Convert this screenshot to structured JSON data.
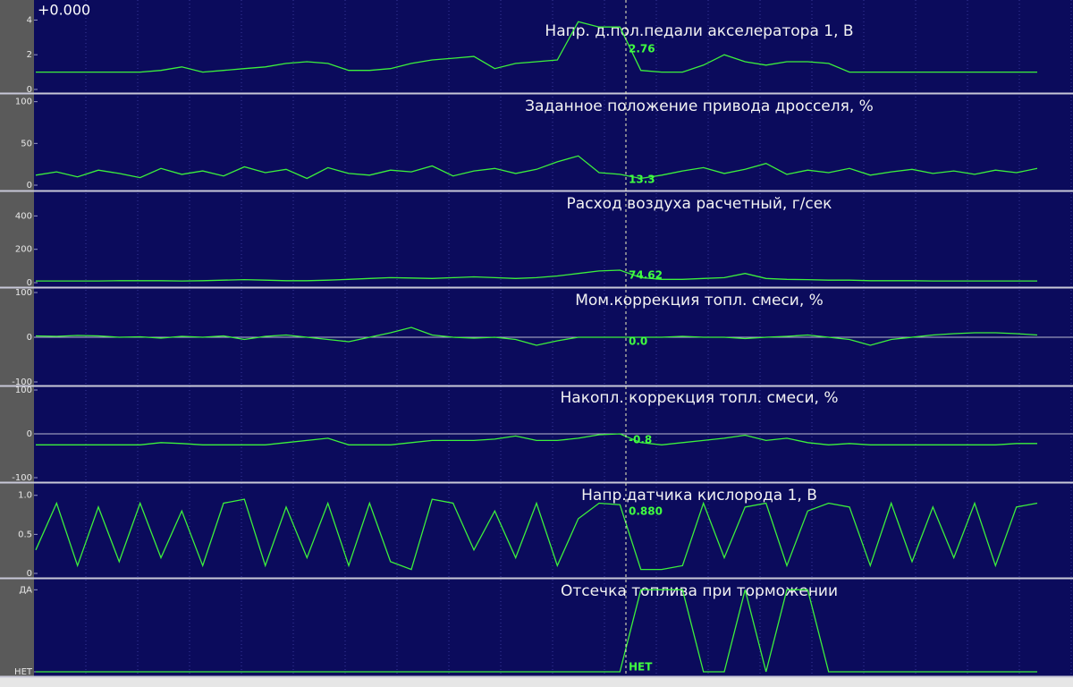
{
  "offset_label": "+0.000",
  "chart_data": [
    {
      "type": "line",
      "title": "Напр. д.пол.педали акселератора 1, В",
      "cursor_label": "2.76",
      "color": "#3cf03c",
      "ylim": [
        0,
        5
      ],
      "yticks": [
        0,
        2,
        4
      ],
      "values": [
        1.0,
        1.0,
        1.0,
        1.0,
        1.0,
        1.0,
        1.1,
        1.3,
        1.0,
        1.1,
        1.2,
        1.3,
        1.5,
        1.6,
        1.5,
        1.1,
        1.1,
        1.2,
        1.5,
        1.7,
        1.8,
        1.9,
        1.2,
        1.5,
        1.6,
        1.7,
        3.9,
        3.6,
        3.6,
        1.1,
        1.0,
        1.0,
        1.4,
        2.0,
        1.6,
        1.4,
        1.6,
        1.6,
        1.5,
        1.0,
        1.0,
        1.0,
        1.0,
        1.0,
        1.0,
        1.0,
        1.0,
        1.0,
        1.0
      ]
    },
    {
      "type": "line",
      "title": "Заданное положение привода дросселя, %",
      "cursor_label": "13.3",
      "color": "#3cf03c",
      "ylim": [
        0,
        105
      ],
      "yticks": [
        0,
        50,
        100
      ],
      "values": [
        12,
        16,
        10,
        18,
        14,
        9,
        20,
        13,
        17,
        11,
        22,
        15,
        19,
        8,
        21,
        14,
        12,
        18,
        16,
        23,
        11,
        17,
        20,
        14,
        19,
        28,
        35,
        15,
        13,
        8,
        12,
        17,
        21,
        14,
        19,
        26,
        13,
        18,
        15,
        20,
        12,
        16,
        19,
        14,
        17,
        13,
        18,
        15,
        20
      ]
    },
    {
      "type": "line",
      "title": "Расход воздуха расчетный, г/сек",
      "cursor_label": "74.62",
      "color": "#3cf03c",
      "ylim": [
        0,
        520
      ],
      "yticks": [
        0,
        200,
        400
      ],
      "values": [
        10,
        10,
        10,
        10,
        12,
        12,
        12,
        10,
        12,
        15,
        18,
        15,
        12,
        12,
        15,
        20,
        25,
        30,
        28,
        25,
        30,
        35,
        30,
        25,
        30,
        40,
        55,
        70,
        75,
        30,
        20,
        20,
        25,
        30,
        55,
        25,
        20,
        18,
        15,
        15,
        12,
        12,
        12,
        10,
        10,
        10,
        10,
        10,
        10
      ]
    },
    {
      "type": "line",
      "title": "Мом.коррекция топл. смеси, %",
      "cursor_label": "0.0",
      "color": "#3cf03c",
      "ylim": [
        -100,
        100
      ],
      "yticks": [
        -100,
        0,
        100
      ],
      "values": [
        3,
        2,
        4,
        3,
        0,
        1,
        -2,
        2,
        0,
        3,
        -5,
        2,
        5,
        0,
        -5,
        -10,
        0,
        10,
        22,
        5,
        0,
        -2,
        0,
        -5,
        -18,
        -8,
        0,
        0,
        0,
        0,
        0,
        2,
        0,
        0,
        -3,
        0,
        2,
        5,
        0,
        -5,
        -18,
        -5,
        0,
        5,
        8,
        10,
        10,
        8,
        5
      ]
    },
    {
      "type": "line",
      "title": "Накопл. коррекция топл. смеси, %",
      "cursor_label": "-0.8",
      "color": "#3cf03c",
      "ylim": [
        -100,
        100
      ],
      "yticks": [
        -100,
        0,
        100
      ],
      "values": [
        -25,
        -25,
        -25,
        -25,
        -25,
        -25,
        -20,
        -22,
        -25,
        -25,
        -25,
        -25,
        -20,
        -15,
        -10,
        -25,
        -25,
        -25,
        -20,
        -15,
        -15,
        -15,
        -12,
        -5,
        -15,
        -15,
        -10,
        -2,
        0,
        -20,
        -25,
        -20,
        -15,
        -10,
        -3,
        -15,
        -10,
        -20,
        -25,
        -22,
        -25,
        -25,
        -25,
        -25,
        -25,
        -25,
        -25,
        -22,
        -22
      ]
    },
    {
      "type": "line",
      "title": "Напр.датчика кислорода 1, В",
      "cursor_label": "0.880",
      "color": "#3cf03c",
      "ylim": [
        0,
        1.1
      ],
      "yticks": [
        0,
        0.5,
        {
          "value": 1,
          "label": "1.0"
        }
      ],
      "values": [
        0.3,
        0.9,
        0.1,
        0.85,
        0.15,
        0.9,
        0.2,
        0.8,
        0.1,
        0.9,
        0.95,
        0.1,
        0.85,
        0.2,
        0.9,
        0.1,
        0.9,
        0.15,
        0.05,
        0.95,
        0.9,
        0.3,
        0.8,
        0.2,
        0.9,
        0.1,
        0.7,
        0.9,
        0.88,
        0.05,
        0.05,
        0.1,
        0.9,
        0.2,
        0.85,
        0.9,
        0.1,
        0.8,
        0.9,
        0.85,
        0.1,
        0.9,
        0.15,
        0.85,
        0.2,
        0.9,
        0.1,
        0.85,
        0.9
      ]
    },
    {
      "type": "line",
      "title": "Отсечка топлива при торможении",
      "cursor_label": "НЕТ",
      "color": "#3cf03c",
      "ylim": [
        0,
        1.08
      ],
      "yticks": [
        {
          "value": 0,
          "label": "НЕТ"
        },
        {
          "value": 1,
          "label": "ДА"
        }
      ],
      "values": [
        0,
        0,
        0,
        0,
        0,
        0,
        0,
        0,
        0,
        0,
        0,
        0,
        0,
        0,
        0,
        0,
        0,
        0,
        0,
        0,
        0,
        0,
        0,
        0,
        0,
        0,
        0,
        0,
        0,
        1,
        1,
        1,
        0,
        0,
        1,
        0,
        1,
        1,
        0,
        0,
        0,
        0,
        0,
        0,
        0,
        0,
        0,
        0,
        0
      ]
    }
  ]
}
